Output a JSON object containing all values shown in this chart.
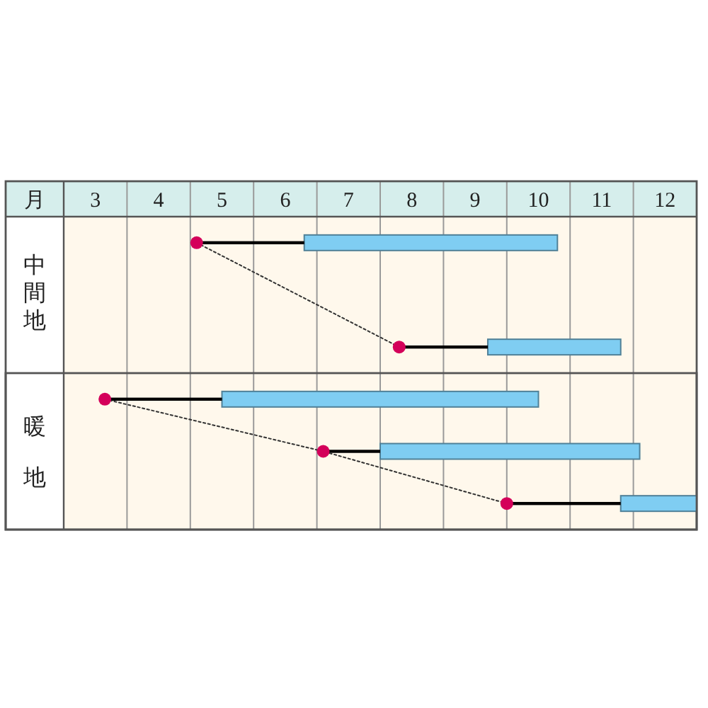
{
  "chart_data": {
    "type": "bar",
    "orientation": "horizontal",
    "xlabel": "月",
    "annotations": [
      "中間地",
      "暖地"
    ],
    "categories": [
      null,
      null,
      null,
      null,
      null,
      null
    ],
    "series": [
      {
        "type": "bar",
        "color": "#7fcdf2",
        "base": [
          6.8,
          null,
          9.7,
          5.5,
          8.0,
          11.8
        ],
        "values": [
          4.0,
          null,
          2.1,
          5.0,
          4.1,
          1.2
        ]
      },
      {
        "type": "bar",
        "color": "#000000",
        "base": [
          5.1,
          null,
          8.3,
          3.65,
          7.1,
          10.0
        ],
        "values": [
          1.7,
          null,
          1.4,
          1.85,
          0.9,
          1.8
        ]
      },
      {
        "type": "line",
        "color": "#333333",
        "line_style": "dotted",
        "values": [
          5.1,
          6.7,
          8.3,
          null,
          null,
          null
        ]
      },
      {
        "type": "line",
        "color": "#333333",
        "line_style": "dotted",
        "values": [
          null,
          null,
          null,
          3.65,
          7.1,
          10.0
        ]
      },
      {
        "type": "scatter",
        "color": "#d4005a",
        "marker": "circle",
        "values": [
          5.1,
          null,
          8.3,
          3.65,
          7.1,
          10.0
        ]
      }
    ],
    "xlim": [
      3,
      13
    ],
    "xticks": [
      {
        "value": 3,
        "label": null
      },
      {
        "value": 3.5,
        "label": "3"
      },
      {
        "value": 4,
        "label": null
      },
      {
        "value": 4.5,
        "label": "4"
      },
      {
        "value": 5,
        "label": null
      },
      {
        "value": 5.5,
        "label": "5"
      },
      {
        "value": 6,
        "label": null
      },
      {
        "value": 6.5,
        "label": "6"
      },
      {
        "value": 7,
        "label": null
      },
      {
        "value": 7.5,
        "label": "7"
      },
      {
        "value": 8,
        "label": null
      },
      {
        "value": 8.5,
        "label": "8"
      },
      {
        "value": 9,
        "label": null
      },
      {
        "value": 9.5,
        "label": "9"
      },
      {
        "value": 10,
        "label": null
      },
      {
        "value": 10.5,
        "label": "10"
      },
      {
        "value": 11,
        "label": null
      },
      {
        "value": 11.5,
        "label": "11"
      },
      {
        "value": 12,
        "label": null
      },
      {
        "value": 12.5,
        "label": "12"
      },
      {
        "value": 13,
        "label": null
      }
    ],
    "grid": "x"
  }
}
